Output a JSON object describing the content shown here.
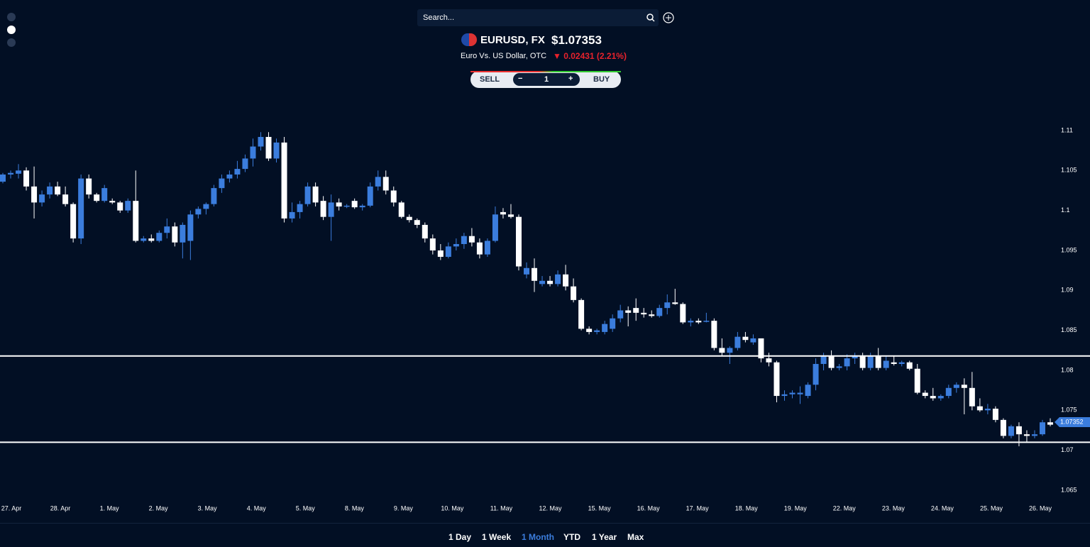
{
  "search": {
    "placeholder": "Search..."
  },
  "header": {
    "symbol": "EURUSD, FX",
    "price": "$1.07353",
    "description": "Euro Vs. US Dollar, OTC",
    "change": "0.02431 (2.21%)"
  },
  "trade": {
    "sell": "SELL",
    "quantity": "1",
    "buy": "BUY"
  },
  "timeframes": {
    "options": [
      "1 Day",
      "1 Week",
      "1 Month",
      "YTD",
      "1 Year",
      "Max"
    ],
    "active": 2
  },
  "chart_data": {
    "type": "candlestick",
    "xlabels": [
      "27. Apr",
      "28. Apr",
      "1. May",
      "2. May",
      "3. May",
      "4. May",
      "5. May",
      "8. May",
      "9. May",
      "10. May",
      "11. May",
      "12. May",
      "15. May",
      "16. May",
      "17. May",
      "18. May",
      "19. May",
      "22. May",
      "23. May",
      "24. May",
      "25. May",
      "26. May"
    ],
    "open": [
      1.1036,
      1.1045,
      1.1046,
      1.105,
      1.103,
      1.101,
      1.102,
      1.103,
      1.102,
      1.1008,
      1.0965,
      1.104,
      1.102,
      1.1012,
      1.1012,
      1.101,
      1.1,
      1.1012,
      1.0962,
      1.0965,
      1.0962,
      1.0972,
      1.098,
      1.096,
      1.0962,
      1.0995,
      1.1002,
      1.1008,
      1.1028,
      1.104,
      1.1045,
      1.1052,
      1.1065,
      1.108,
      1.1092,
      1.1065,
      1.1085,
      1.099,
      1.0998,
      1.1008,
      1.103,
      1.1012,
      1.0992,
      1.101,
      1.1005,
      1.1012,
      1.1004,
      1.1006,
      1.103,
      1.1042,
      1.1025,
      1.101,
      1.0992,
      1.0988,
      1.0982,
      1.0965,
      1.095,
      1.0942,
      1.0955,
      1.0958,
      1.0968,
      1.096,
      1.0945,
      1.0962,
      1.0998,
      1.0995,
      1.0992,
      1.092,
      1.0928,
      1.0908,
      1.0912,
      1.0908,
      1.092,
      1.0905,
      1.0888,
      1.0852,
      1.0848,
      1.0848,
      1.0852,
      1.0865,
      1.0875,
      1.0878,
      1.0872,
      1.087,
      1.0868,
      1.0878,
      1.0885,
      1.0883,
      1.086,
      1.0862,
      1.0862,
      1.0862,
      1.0828,
      1.0822,
      1.0828,
      1.0842,
      1.0835,
      1.084,
      1.0815,
      1.081,
      1.0768,
      1.077,
      1.077,
      1.0768,
      1.0782,
      1.0808,
      1.0818,
      1.0803,
      1.0805,
      1.0815,
      1.0818,
      1.0803,
      1.0818,
      1.0803,
      1.081,
      1.0808,
      1.081,
      1.0802,
      1.0772,
      1.0768,
      1.0765,
      1.0768,
      1.0778,
      1.0782,
      1.0778,
      1.0755,
      1.075,
      1.0752,
      1.0738,
      1.0718,
      1.073,
      1.072,
      1.0718,
      1.072,
      1.0735
    ],
    "high": [
      1.1047,
      1.105,
      1.1058,
      1.1054,
      1.1055,
      1.1025,
      1.1035,
      1.1036,
      1.103,
      1.101,
      1.1045,
      1.1045,
      1.1022,
      1.1032,
      1.1015,
      1.1012,
      1.1015,
      1.105,
      1.0968,
      1.097,
      1.0975,
      1.099,
      1.0985,
      1.0985,
      1.1,
      1.1005,
      1.101,
      1.1032,
      1.1045,
      1.105,
      1.1062,
      1.107,
      1.109,
      1.1098,
      1.1098,
      1.109,
      1.1092,
      1.101,
      1.1012,
      1.1035,
      1.1035,
      1.1018,
      1.102,
      1.1015,
      1.1008,
      1.1015,
      1.1008,
      1.1035,
      1.105,
      1.105,
      1.103,
      1.1012,
      1.0995,
      1.099,
      1.0985,
      1.097,
      1.0958,
      1.096,
      1.0965,
      1.0972,
      1.0978,
      1.0965,
      1.0965,
      1.1005,
      1.1003,
      1.1008,
      1.0995,
      1.0935,
      1.094,
      1.0918,
      1.0918,
      1.0925,
      1.0932,
      1.0915,
      1.089,
      1.0855,
      1.0852,
      1.0862,
      1.087,
      1.0882,
      1.088,
      1.089,
      1.0878,
      1.0875,
      1.0882,
      1.0895,
      1.0902,
      1.0885,
      1.0865,
      1.0865,
      1.0872,
      1.0865,
      1.084,
      1.083,
      1.0848,
      1.0848,
      1.0845,
      1.084,
      1.0822,
      1.0812,
      1.0775,
      1.0775,
      1.078,
      1.0785,
      1.0815,
      1.0822,
      1.0825,
      1.0808,
      1.082,
      1.0822,
      1.0822,
      1.0822,
      1.0828,
      1.0818,
      1.0818,
      1.0812,
      1.0812,
      1.0808,
      1.0775,
      1.0778,
      1.077,
      1.0782,
      1.0785,
      1.079,
      1.0798,
      1.0765,
      1.0758,
      1.0755,
      1.074,
      1.0732,
      1.0735,
      1.0725,
      1.0725,
      1.0738,
      1.074
    ],
    "low": [
      1.1034,
      1.104,
      1.104,
      1.1025,
      1.099,
      1.1005,
      1.1015,
      1.1018,
      1.1005,
      1.096,
      1.0958,
      1.1015,
      1.101,
      1.101,
      1.1008,
      1.0997,
      1.0997,
      1.096,
      1.096,
      1.096,
      1.096,
      1.0965,
      1.0955,
      1.094,
      1.0938,
      1.099,
      1.0995,
      1.1005,
      1.1022,
      1.1035,
      1.104,
      1.1048,
      1.1055,
      1.1075,
      1.1062,
      1.106,
      1.0985,
      1.0985,
      1.099,
      1.1005,
      1.1005,
      1.0988,
      1.0962,
      1.1,
      1.1003,
      1.1002,
      1.1,
      1.1004,
      1.1025,
      1.102,
      1.1005,
      1.099,
      1.0985,
      1.0978,
      1.096,
      1.0945,
      1.0938,
      1.094,
      1.095,
      1.0952,
      1.0955,
      1.094,
      1.0942,
      1.096,
      1.099,
      1.099,
      1.0925,
      1.0915,
      1.0898,
      1.0905,
      1.0905,
      1.0905,
      1.09,
      1.0885,
      1.085,
      1.0845,
      1.0845,
      1.0845,
      1.0848,
      1.086,
      1.0855,
      1.0862,
      1.0866,
      1.0866,
      1.0866,
      1.087,
      1.0882,
      1.0858,
      1.0855,
      1.0858,
      1.086,
      1.0825,
      1.0818,
      1.0808,
      1.0825,
      1.0835,
      1.0832,
      1.081,
      1.0805,
      1.076,
      1.0762,
      1.0765,
      1.0758,
      1.0765,
      1.0775,
      1.08,
      1.08,
      1.08,
      1.08,
      1.0808,
      1.08,
      1.08,
      1.08,
      1.08,
      1.0806,
      1.0805,
      1.08,
      1.077,
      1.0765,
      1.0762,
      1.0762,
      1.0765,
      1.0772,
      1.0745,
      1.075,
      1.0748,
      1.0745,
      1.0735,
      1.0715,
      1.0715,
      1.0705,
      1.071,
      1.0715,
      1.0718,
      1.073
    ],
    "close": [
      1.1045,
      1.1047,
      1.105,
      1.103,
      1.101,
      1.102,
      1.103,
      1.102,
      1.1008,
      1.0965,
      1.104,
      1.102,
      1.1012,
      1.1028,
      1.101,
      1.1,
      1.1012,
      1.0962,
      1.0965,
      1.0962,
      1.0972,
      1.098,
      1.096,
      1.0982,
      1.0995,
      1.1002,
      1.1008,
      1.1028,
      1.104,
      1.1045,
      1.1052,
      1.1065,
      1.108,
      1.1092,
      1.1065,
      1.1085,
      1.099,
      1.0998,
      1.1008,
      1.103,
      1.101,
      1.0992,
      1.101,
      1.1005,
      1.1006,
      1.1004,
      1.1006,
      1.103,
      1.1042,
      1.1025,
      1.101,
      1.0992,
      1.0988,
      1.0982,
      1.0965,
      1.095,
      1.0942,
      1.0955,
      1.0958,
      1.0968,
      1.096,
      1.0945,
      1.0962,
      1.0995,
      1.0995,
      1.0992,
      1.093,
      1.0928,
      1.0912,
      1.0912,
      1.0908,
      1.092,
      1.0905,
      1.0888,
      1.0852,
      1.0848,
      1.085,
      1.0858,
      1.0865,
      1.0875,
      1.0872,
      1.0872,
      1.087,
      1.0868,
      1.0878,
      1.0885,
      1.0883,
      1.086,
      1.0862,
      1.086,
      1.0862,
      1.0828,
      1.0822,
      1.0828,
      1.0842,
      1.0838,
      1.084,
      1.0815,
      1.081,
      1.0768,
      1.077,
      1.0772,
      1.0772,
      1.0782,
      1.0808,
      1.0818,
      1.0803,
      1.0805,
      1.0815,
      1.0818,
      1.0803,
      1.0818,
      1.0803,
      1.0812,
      1.0808,
      1.081,
      1.0802,
      1.0772,
      1.0768,
      1.0765,
      1.0768,
      1.0778,
      1.0782,
      1.0778,
      1.0755,
      1.075,
      1.0752,
      1.0738,
      1.0718,
      1.073,
      1.072,
      1.0718,
      1.072,
      1.0735,
      1.0732
    ],
    "up_color": "#3b7ddd",
    "down_color": "#ffffff",
    "hlines": [
      1.0818,
      1.071
    ],
    "last_price": 1.07352,
    "ylim": [
      1.065,
      1.11
    ],
    "yticks": [
      1.11,
      1.105,
      1.1,
      1.095,
      1.09,
      1.085,
      1.08,
      1.075,
      1.07,
      1.065
    ]
  }
}
